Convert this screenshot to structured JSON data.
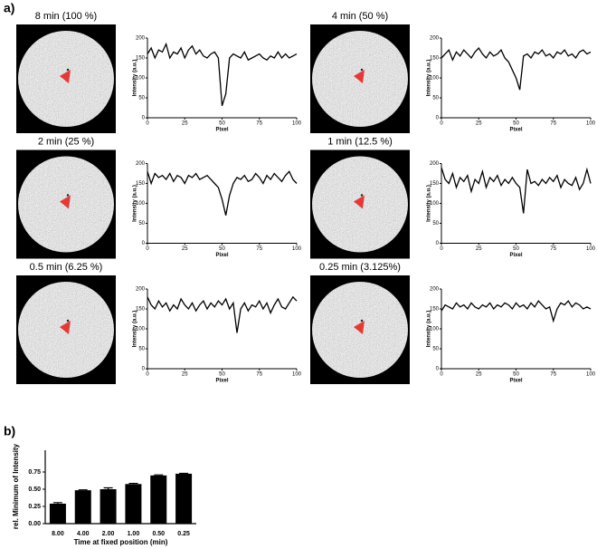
{
  "panel_labels": [
    "a)",
    "b)"
  ],
  "chart_data": [
    {
      "type": "line",
      "title": "8 min (100 %)",
      "xlabel": "Pixel",
      "ylabel": "Intensity (a.u.)",
      "color": "#000000",
      "xlim": [
        0,
        100
      ],
      "xticks": [
        0,
        25,
        50,
        75,
        100
      ],
      "ylim": [
        0,
        200
      ],
      "yticks": [
        0,
        50,
        100,
        150,
        200
      ],
      "x": [
        0,
        2.5,
        5,
        7.5,
        10,
        12.5,
        15,
        17.5,
        20,
        22.5,
        25,
        27.5,
        30,
        32.5,
        35,
        37.5,
        40,
        42.5,
        45,
        47.5,
        50,
        52.5,
        55,
        57.5,
        60,
        62.5,
        65,
        67.5,
        70,
        72.5,
        75,
        77.5,
        80,
        82.5,
        85,
        87.5,
        90,
        92.5,
        95,
        97.5,
        100
      ],
      "values": [
        160,
        175,
        150,
        170,
        165,
        185,
        150,
        165,
        160,
        175,
        150,
        170,
        180,
        160,
        170,
        155,
        150,
        160,
        165,
        150,
        30,
        60,
        150,
        160,
        155,
        150,
        165,
        145,
        150,
        155,
        160,
        150,
        145,
        155,
        150,
        165,
        150,
        160,
        150,
        155,
        160
      ]
    },
    {
      "type": "line",
      "title": "4 min (50 %)",
      "xlabel": "Pixel",
      "ylabel": "Intensity (a.u.)",
      "color": "#000000",
      "xlim": [
        0,
        100
      ],
      "xticks": [
        0,
        25,
        50,
        75,
        100
      ],
      "ylim": [
        0,
        200
      ],
      "yticks": [
        0,
        50,
        100,
        150,
        200
      ],
      "x": [
        0,
        2.5,
        5,
        7.5,
        10,
        12.5,
        15,
        17.5,
        20,
        22.5,
        25,
        27.5,
        30,
        32.5,
        35,
        37.5,
        40,
        42.5,
        45,
        47.5,
        50,
        52.5,
        55,
        57.5,
        60,
        62.5,
        65,
        67.5,
        70,
        72.5,
        75,
        77.5,
        80,
        82.5,
        85,
        87.5,
        90,
        92.5,
        95,
        97.5,
        100
      ],
      "values": [
        150,
        160,
        170,
        145,
        165,
        155,
        170,
        160,
        150,
        165,
        175,
        160,
        150,
        165,
        155,
        160,
        170,
        150,
        140,
        120,
        100,
        70,
        155,
        160,
        150,
        165,
        160,
        170,
        155,
        160,
        150,
        165,
        160,
        170,
        155,
        160,
        150,
        165,
        170,
        160,
        165
      ]
    },
    {
      "type": "line",
      "title": "2 min (25 %)",
      "xlabel": "Pixel",
      "ylabel": "Intensity (a.u.)",
      "color": "#000000",
      "xlim": [
        0,
        100
      ],
      "xticks": [
        0,
        25,
        50,
        75,
        100
      ],
      "ylim": [
        0,
        200
      ],
      "yticks": [
        0,
        50,
        100,
        150,
        200
      ],
      "x": [
        0,
        2.5,
        5,
        7.5,
        10,
        12.5,
        15,
        17.5,
        20,
        22.5,
        25,
        27.5,
        30,
        32.5,
        35,
        37.5,
        40,
        42.5,
        45,
        47.5,
        50,
        52.5,
        55,
        57.5,
        60,
        62.5,
        65,
        67.5,
        70,
        72.5,
        75,
        77.5,
        80,
        82.5,
        85,
        87.5,
        90,
        92.5,
        95,
        97.5,
        100
      ],
      "values": [
        180,
        150,
        175,
        165,
        170,
        160,
        175,
        155,
        170,
        165,
        150,
        170,
        165,
        175,
        160,
        165,
        170,
        160,
        150,
        140,
        110,
        70,
        120,
        150,
        165,
        160,
        170,
        155,
        160,
        175,
        165,
        150,
        170,
        160,
        175,
        165,
        155,
        170,
        180,
        160,
        150
      ]
    },
    {
      "type": "line",
      "title": "1 min (12.5 %)",
      "xlabel": "Pixel",
      "ylabel": "Intensity (a.u.)",
      "color": "#000000",
      "xlim": [
        0,
        100
      ],
      "xticks": [
        0,
        25,
        50,
        75,
        100
      ],
      "ylim": [
        0,
        200
      ],
      "yticks": [
        0,
        50,
        100,
        150,
        200
      ],
      "x": [
        0,
        2.5,
        5,
        7.5,
        10,
        12.5,
        15,
        17.5,
        20,
        22.5,
        25,
        27.5,
        30,
        32.5,
        35,
        37.5,
        40,
        42.5,
        45,
        47.5,
        50,
        52.5,
        55,
        57.5,
        60,
        62.5,
        65,
        67.5,
        70,
        72.5,
        75,
        77.5,
        80,
        82.5,
        85,
        87.5,
        90,
        92.5,
        95,
        97.5,
        100
      ],
      "values": [
        190,
        160,
        150,
        175,
        140,
        165,
        155,
        170,
        130,
        160,
        150,
        180,
        140,
        165,
        155,
        170,
        145,
        160,
        150,
        165,
        150,
        140,
        75,
        185,
        150,
        155,
        145,
        160,
        150,
        165,
        155,
        170,
        140,
        160,
        150,
        145,
        165,
        135,
        150,
        185,
        150
      ]
    },
    {
      "type": "line",
      "title": "0.5 min (6.25 %)",
      "xlabel": "Pixel",
      "ylabel": "Intensity (a.u.)",
      "color": "#000000",
      "xlim": [
        0,
        100
      ],
      "xticks": [
        0,
        25,
        50,
        75,
        100
      ],
      "ylim": [
        0,
        200
      ],
      "yticks": [
        0,
        50,
        100,
        150,
        200
      ],
      "x": [
        0,
        2.5,
        5,
        7.5,
        10,
        12.5,
        15,
        17.5,
        20,
        22.5,
        25,
        27.5,
        30,
        32.5,
        35,
        37.5,
        40,
        42.5,
        45,
        47.5,
        50,
        52.5,
        55,
        57.5,
        60,
        62.5,
        65,
        67.5,
        70,
        72.5,
        75,
        77.5,
        80,
        82.5,
        85,
        87.5,
        90,
        92.5,
        95,
        97.5,
        100
      ],
      "values": [
        180,
        160,
        150,
        170,
        155,
        165,
        145,
        160,
        150,
        175,
        160,
        150,
        165,
        145,
        160,
        170,
        150,
        165,
        155,
        170,
        160,
        175,
        150,
        165,
        90,
        150,
        165,
        145,
        160,
        155,
        170,
        150,
        165,
        140,
        160,
        175,
        155,
        150,
        165,
        180,
        170
      ]
    },
    {
      "type": "line",
      "title": "0.25 min (3.125%)",
      "xlabel": "Pixel",
      "ylabel": "Intensity (a.u.)",
      "color": "#000000",
      "xlim": [
        0,
        100
      ],
      "xticks": [
        0,
        25,
        50,
        75,
        100
      ],
      "ylim": [
        0,
        200
      ],
      "yticks": [
        0,
        50,
        100,
        150,
        200
      ],
      "x": [
        0,
        2.5,
        5,
        7.5,
        10,
        12.5,
        15,
        17.5,
        20,
        22.5,
        25,
        27.5,
        30,
        32.5,
        35,
        37.5,
        40,
        42.5,
        45,
        47.5,
        50,
        52.5,
        55,
        57.5,
        60,
        62.5,
        65,
        67.5,
        70,
        72.5,
        75,
        77.5,
        80,
        82.5,
        85,
        87.5,
        90,
        92.5,
        95,
        97.5,
        100
      ],
      "values": [
        145,
        160,
        155,
        150,
        165,
        155,
        160,
        150,
        165,
        155,
        150,
        160,
        155,
        165,
        150,
        160,
        155,
        165,
        160,
        150,
        165,
        155,
        160,
        150,
        165,
        155,
        170,
        160,
        150,
        155,
        120,
        150,
        165,
        160,
        170,
        155,
        165,
        160,
        150,
        155,
        150
      ]
    },
    {
      "type": "bar",
      "xlabel": "Time at fixed position (min)",
      "ylabel": "rel. Minimum of Intensity",
      "color": "#000000",
      "categories": [
        "8.00",
        "4.00",
        "2.00",
        "1.00",
        "0.50",
        "0.25"
      ],
      "values": [
        0.29,
        0.485,
        0.5,
        0.575,
        0.7,
        0.725
      ],
      "errors": [
        0.015,
        0.006,
        0.02,
        0.01,
        0.008,
        0.006
      ],
      "ylim": [
        0,
        1
      ],
      "yticks": [
        {
          "value": 0,
          "label": "0.00"
        },
        {
          "value": 0.25,
          "label": "0.25"
        },
        {
          "value": 0.5,
          "label": "0.50"
        },
        {
          "value": 0.75,
          "label": "0.75"
        }
      ]
    }
  ]
}
